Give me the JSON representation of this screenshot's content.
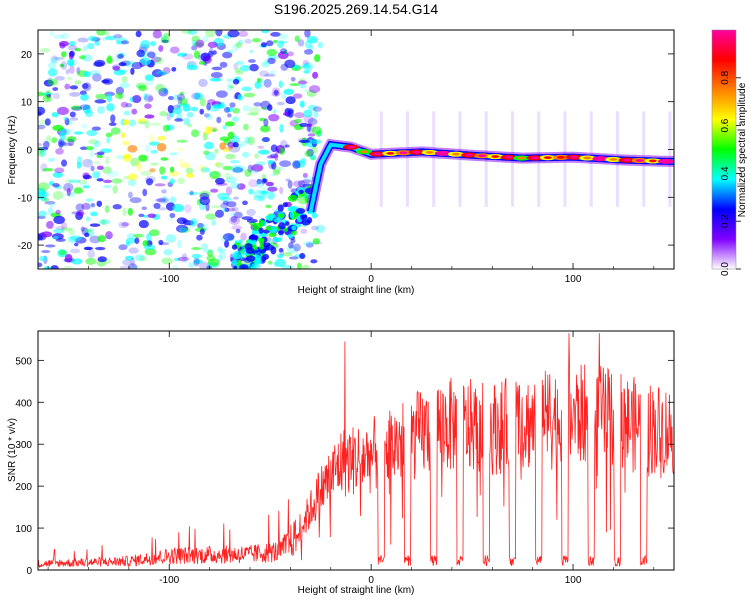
{
  "title": "S196.2025.269.14.54.G14",
  "chart_data": [
    {
      "type": "heatmap",
      "name": "spectrogram",
      "xlabel": "Height of straight line (km)",
      "ylabel": "Frequency (Hz)",
      "xlim": [
        -165,
        150
      ],
      "ylim": [
        -25,
        25
      ],
      "xticks": [
        -100,
        0,
        100
      ],
      "yticks": [
        -20,
        -10,
        0,
        10,
        20
      ],
      "colorbar": {
        "label": "Normalized spectral amplitude",
        "range": [
          0.0,
          1.0
        ],
        "ticks": [
          0.0,
          0.2,
          0.4,
          0.6,
          0.8
        ],
        "tick_labels": [
          "0.0",
          "0.2",
          "0.4",
          "0.6",
          "0.8"
        ],
        "colormap": [
          "#ffffff",
          "#7f00ff",
          "#0000ff",
          "#00ffff",
          "#00ff00",
          "#ffff00",
          "#ff8000",
          "#ff0000",
          "#ff00a0"
        ]
      },
      "ridge": [
        {
          "x": -30,
          "f": -13
        },
        {
          "x": -25,
          "f": -3
        },
        {
          "x": -20,
          "f": 1
        },
        {
          "x": -10,
          "f": 0.5
        },
        {
          "x": 0,
          "f": -1
        },
        {
          "x": 25,
          "f": -0.5
        },
        {
          "x": 50,
          "f": -1.2
        },
        {
          "x": 75,
          "f": -1.8
        },
        {
          "x": 100,
          "f": -1.6
        },
        {
          "x": 125,
          "f": -2.2
        },
        {
          "x": 148,
          "f": -2.5
        }
      ]
    },
    {
      "type": "line",
      "name": "snr",
      "xlabel": "Height of straight line (km)",
      "ylabel": "SNR (10 * v/v)",
      "xlim": [
        -165,
        150
      ],
      "ylim": [
        0,
        570
      ],
      "xticks": [
        -100,
        0,
        100
      ],
      "yticks": [
        0,
        100,
        200,
        300,
        400,
        500
      ],
      "color": "#ff2020",
      "envelope": [
        {
          "x": -165,
          "y": 20
        },
        {
          "x": -120,
          "y": 28
        },
        {
          "x": -100,
          "y": 45
        },
        {
          "x": -80,
          "y": 48
        },
        {
          "x": -60,
          "y": 50
        },
        {
          "x": -45,
          "y": 60
        },
        {
          "x": -35,
          "y": 120
        },
        {
          "x": -25,
          "y": 230
        },
        {
          "x": -15,
          "y": 310
        },
        {
          "x": 0,
          "y": 330
        },
        {
          "x": 15,
          "y": 370
        },
        {
          "x": 35,
          "y": 420
        },
        {
          "x": 60,
          "y": 410
        },
        {
          "x": 90,
          "y": 440
        },
        {
          "x": 110,
          "y": 450
        },
        {
          "x": 130,
          "y": 420
        },
        {
          "x": 150,
          "y": 400
        }
      ],
      "dropouts_x": [
        5,
        18,
        31,
        44,
        57,
        70,
        83,
        96,
        109,
        122,
        135
      ],
      "peaks": [
        {
          "x": -13,
          "y": 545
        },
        {
          "x": 98,
          "y": 565
        },
        {
          "x": 113,
          "y": 565
        }
      ]
    }
  ]
}
